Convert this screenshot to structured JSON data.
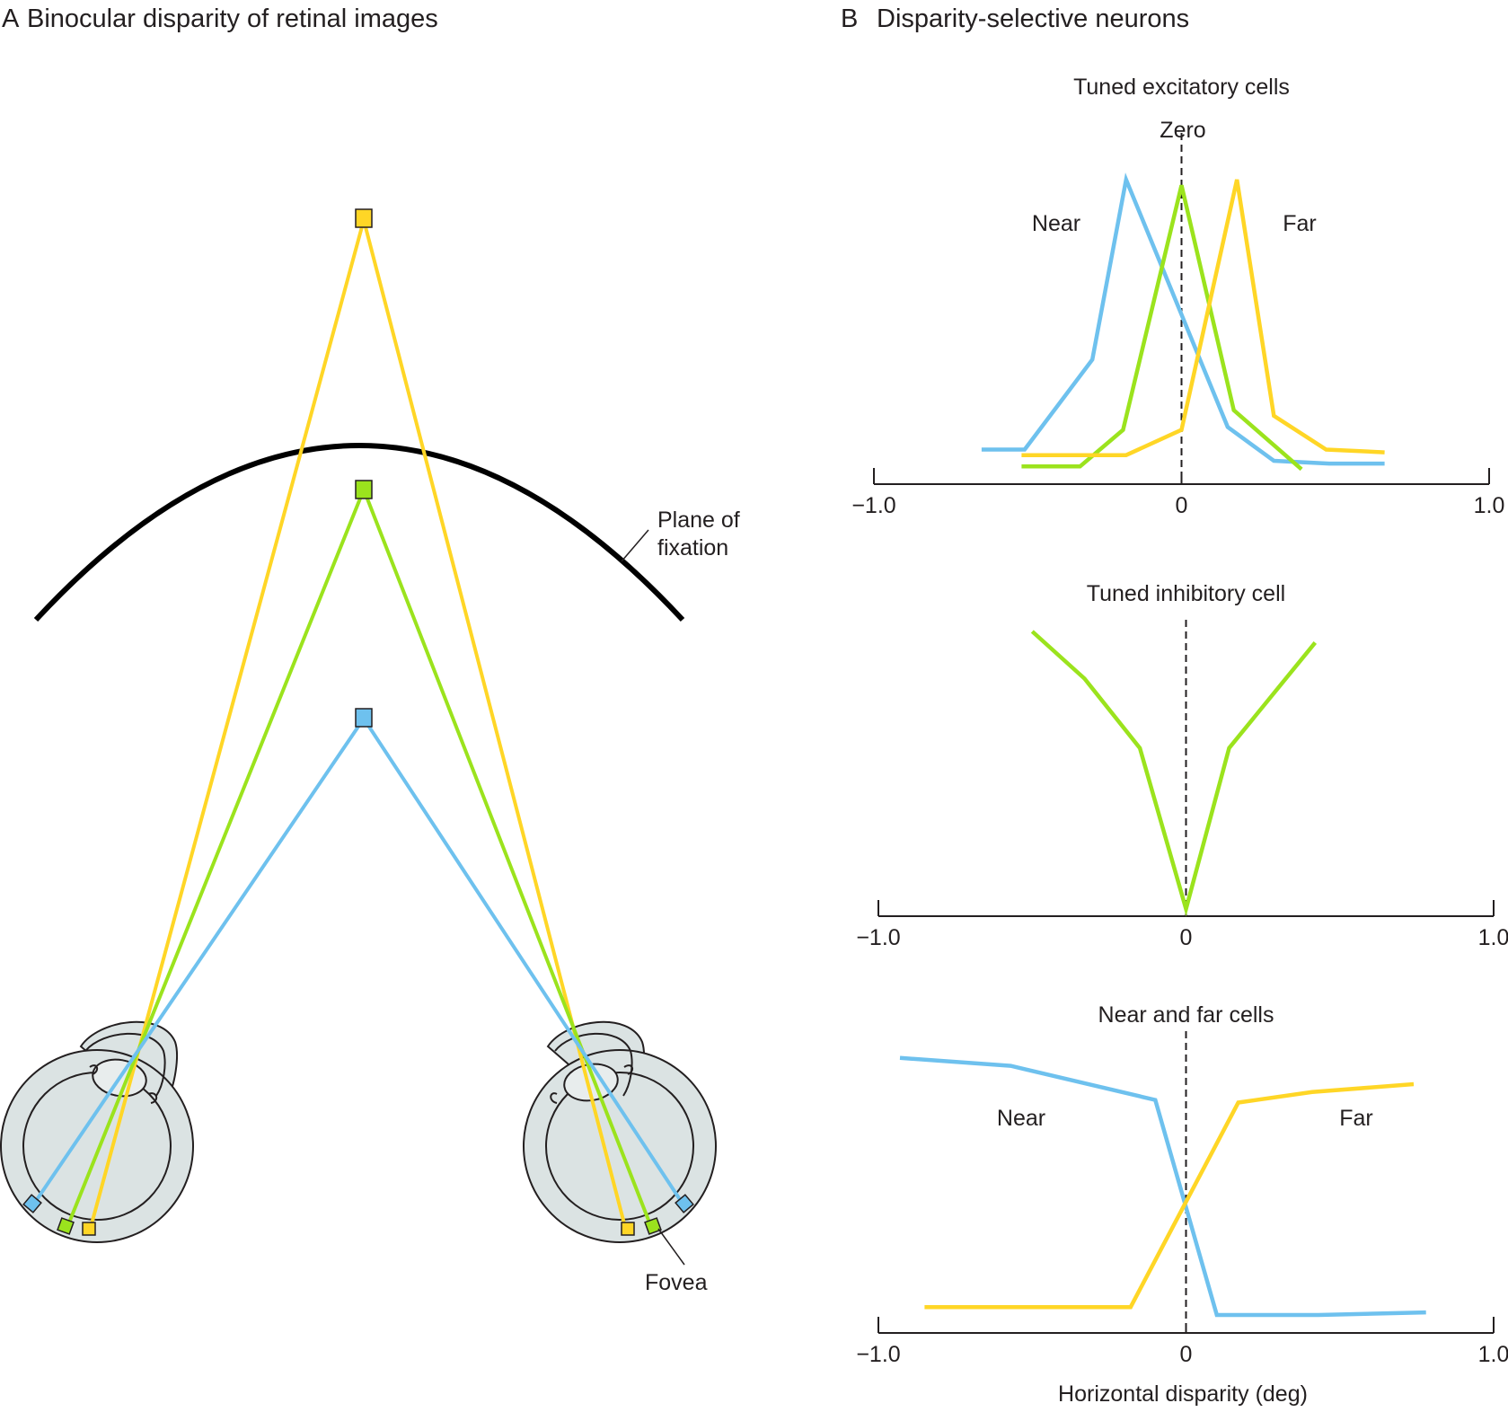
{
  "panel_a": {
    "letter": "A",
    "title": "Binocular disparity of retinal images",
    "plane_label_line1": "Plane of",
    "plane_label_line2": "fixation",
    "fovea_label": "Fovea"
  },
  "panel_b": {
    "letter": "B",
    "title": "Disparity-selective neurons",
    "xlabel": "Horizontal disparity (deg)",
    "tick_labels": [
      "−1.0",
      "0",
      "1.0"
    ]
  },
  "colors": {
    "near": "#6ec1ee",
    "zero": "#9be31d",
    "far": "#ffd626",
    "eye_fill": "#dbe3e3",
    "outline": "#231f20"
  },
  "chart_data": [
    {
      "type": "line",
      "title": "Tuned excitatory cells",
      "annotations": [
        "Zero",
        "Near",
        "Far"
      ],
      "xlim": [
        -1.0,
        1.0
      ],
      "x_ticks": [
        -1.0,
        0,
        1.0
      ],
      "ylim": [
        0,
        1
      ],
      "series": [
        {
          "name": "Near",
          "color": "#6ec1ee",
          "x": [
            -0.65,
            -0.51,
            -0.29,
            -0.18,
            0.15,
            0.3,
            0.48,
            0.66
          ],
          "y": [
            0.04,
            0.04,
            0.36,
            1.0,
            0.12,
            0.0,
            -0.01,
            -0.01
          ]
        },
        {
          "name": "Zero",
          "color": "#9be31d",
          "x": [
            -0.52,
            -0.33,
            -0.19,
            0.0,
            0.17,
            0.39
          ],
          "y": [
            -0.02,
            -0.02,
            0.11,
            0.98,
            0.18,
            -0.03
          ]
        },
        {
          "name": "Far",
          "color": "#ffd626",
          "x": [
            -0.52,
            -0.18,
            0.0,
            0.18,
            0.3,
            0.47,
            0.66
          ],
          "y": [
            0.02,
            0.02,
            0.11,
            1.0,
            0.16,
            0.04,
            0.03
          ]
        }
      ]
    },
    {
      "type": "line",
      "title": "Tuned inhibitory cell",
      "xlim": [
        -1.0,
        1.0
      ],
      "x_ticks": [
        -1.0,
        0,
        1.0
      ],
      "ylim": [
        0,
        1
      ],
      "series": [
        {
          "name": "",
          "color": "#9be31d",
          "x": [
            -0.5,
            -0.33,
            -0.15,
            0.0,
            0.14,
            0.42
          ],
          "y": [
            1.0,
            0.83,
            0.58,
            0.0,
            0.58,
            0.96
          ]
        }
      ]
    },
    {
      "type": "line",
      "title": "Near and far cells",
      "annotations": [
        "Near",
        "Far"
      ],
      "xlim": [
        -1.0,
        1.0
      ],
      "x_ticks": [
        -1.0,
        0,
        1.0
      ],
      "ylim": [
        0,
        1
      ],
      "series": [
        {
          "name": "Near",
          "color": "#6ec1ee",
          "x": [
            -0.93,
            -0.57,
            -0.1,
            0.1,
            0.43,
            0.78
          ],
          "y": [
            0.98,
            0.95,
            0.82,
            0.0,
            0.0,
            0.01
          ]
        },
        {
          "name": "Far",
          "color": "#ffd626",
          "x": [
            -0.85,
            -0.18,
            0.17,
            0.41,
            0.74
          ],
          "y": [
            0.03,
            0.03,
            0.81,
            0.85,
            0.88
          ]
        }
      ]
    }
  ]
}
